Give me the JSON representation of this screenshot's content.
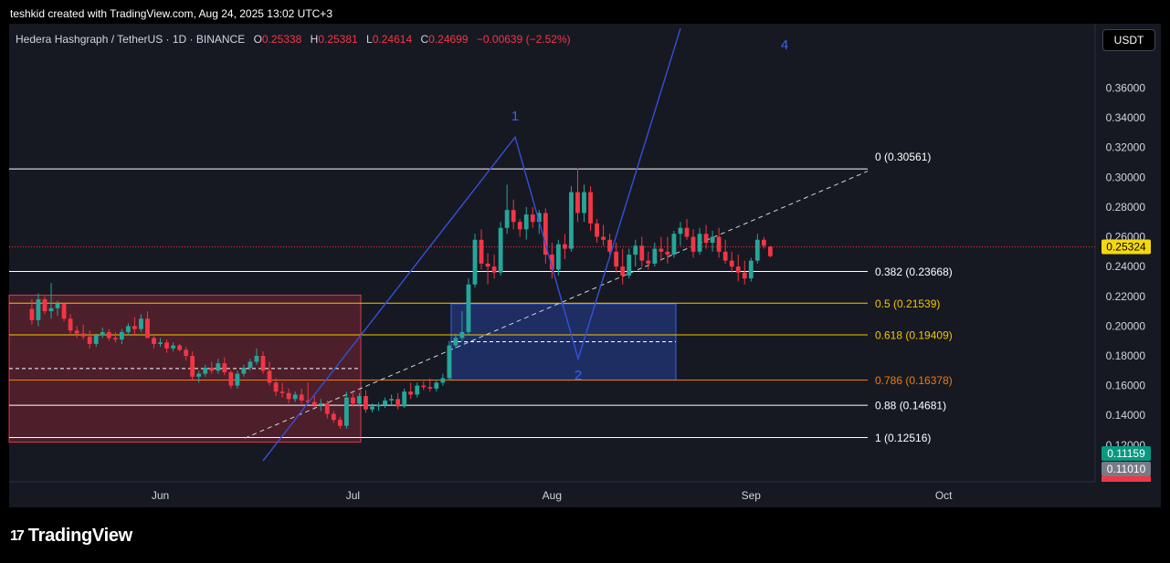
{
  "header": {
    "credit": "teshkid created with TradingView.com, Aug 24, 2025 13:02 UTC+3"
  },
  "legend": {
    "symbol": "Hedera Hashgraph / TetherUS · 1D · BINANCE",
    "o_label": "O",
    "o": "0.25338",
    "h_label": "H",
    "h": "0.25381",
    "l_label": "L",
    "l": "0.24614",
    "c_label": "C",
    "c": "0.24699",
    "change": "−0.00639 (−2.52%)"
  },
  "currency_button": "USDT",
  "brand": {
    "name": "TradingView",
    "mark": "17"
  },
  "colors": {
    "up": "#26a69a",
    "down": "#f23645",
    "background": "#161922",
    "wave_line": "#3550d9",
    "fib_gold": "#f5c400",
    "fib_orange": "#f57c00",
    "price_badge": "#f5d90a",
    "box_red": "#b22a3a",
    "box_blue": "#2a4ec4"
  },
  "chart_data": {
    "type": "candlestick",
    "x_axis": {
      "labels": [
        "Jun",
        "Jul",
        "Aug",
        "Sep",
        "Oct"
      ],
      "dates": [
        "2025-06-01",
        "2025-07-01",
        "2025-08-01",
        "2025-09-01",
        "2025-10-01"
      ]
    },
    "y_axis": {
      "range": [
        0.11,
        0.39
      ],
      "ticks": [
        "0.12000",
        "0.14000",
        "0.16000",
        "0.18000",
        "0.20000",
        "0.22000",
        "0.24000",
        "0.26000",
        "0.28000",
        "0.30000",
        "0.32000",
        "0.34000",
        "0.36000"
      ]
    },
    "current_price": "0.25324",
    "price_markers": [
      {
        "value": "0.11159",
        "color": "#089981"
      },
      {
        "value": "0.11010",
        "color": "#787b86"
      }
    ],
    "fibonacci": [
      {
        "label": "0 (0.30561)",
        "price": 0.30561,
        "color": "#ffffff"
      },
      {
        "label": "0.382 (0.23668)",
        "price": 0.23668,
        "color": "#ffffff"
      },
      {
        "label": "0.5 (0.21539)",
        "price": 0.21539,
        "color": "#f5c400"
      },
      {
        "label": "0.618 (0.19409)",
        "price": 0.19409,
        "color": "#f5c400"
      },
      {
        "label": "0.786 (0.16378)",
        "price": 0.16378,
        "color": "#f57c00"
      },
      {
        "label": "0.88 (0.14681)",
        "price": 0.14681,
        "color": "#ffffff"
      },
      {
        "label": "1 (0.12516)",
        "price": 0.12516,
        "color": "#ffffff"
      }
    ],
    "wave_labels": [
      "1",
      "2",
      "4"
    ],
    "candles": [
      [
        "2025-05-12",
        0.2115,
        0.218,
        0.201,
        0.204
      ],
      [
        "2025-05-13",
        0.204,
        0.222,
        0.2,
        0.218
      ],
      [
        "2025-05-14",
        0.218,
        0.22,
        0.208,
        0.21
      ],
      [
        "2025-05-15",
        0.21,
        0.229,
        0.205,
        0.212
      ],
      [
        "2025-05-16",
        0.212,
        0.217,
        0.207,
        0.215
      ],
      [
        "2025-05-17",
        0.215,
        0.216,
        0.203,
        0.205
      ],
      [
        "2025-05-18",
        0.205,
        0.208,
        0.195,
        0.197
      ],
      [
        "2025-05-19",
        0.197,
        0.2,
        0.192,
        0.195
      ],
      [
        "2025-05-20",
        0.195,
        0.201,
        0.191,
        0.193
      ],
      [
        "2025-05-21",
        0.193,
        0.197,
        0.185,
        0.188
      ],
      [
        "2025-05-22",
        0.188,
        0.195,
        0.186,
        0.194
      ],
      [
        "2025-05-23",
        0.194,
        0.199,
        0.192,
        0.196
      ],
      [
        "2025-05-24",
        0.196,
        0.198,
        0.19,
        0.192
      ],
      [
        "2025-05-25",
        0.192,
        0.196,
        0.189,
        0.191
      ],
      [
        "2025-05-26",
        0.191,
        0.198,
        0.188,
        0.196
      ],
      [
        "2025-05-27",
        0.196,
        0.202,
        0.194,
        0.2
      ],
      [
        "2025-05-28",
        0.2,
        0.206,
        0.194,
        0.198
      ],
      [
        "2025-05-29",
        0.198,
        0.208,
        0.196,
        0.205
      ],
      [
        "2025-05-30",
        0.205,
        0.21,
        0.193,
        0.192
      ],
      [
        "2025-05-31",
        0.192,
        0.194,
        0.185,
        0.188
      ],
      [
        "2025-06-01",
        0.188,
        0.192,
        0.186,
        0.189
      ],
      [
        "2025-06-02",
        0.189,
        0.191,
        0.182,
        0.185
      ],
      [
        "2025-06-03",
        0.185,
        0.189,
        0.183,
        0.187
      ],
      [
        "2025-06-04",
        0.187,
        0.188,
        0.183,
        0.184
      ],
      [
        "2025-06-05",
        0.184,
        0.186,
        0.177,
        0.18
      ],
      [
        "2025-06-06",
        0.18,
        0.183,
        0.164,
        0.166
      ],
      [
        "2025-06-07",
        0.166,
        0.17,
        0.162,
        0.168
      ],
      [
        "2025-06-08",
        0.168,
        0.174,
        0.166,
        0.172
      ],
      [
        "2025-06-09",
        0.172,
        0.176,
        0.168,
        0.17
      ],
      [
        "2025-06-10",
        0.17,
        0.178,
        0.168,
        0.175
      ],
      [
        "2025-06-11",
        0.175,
        0.179,
        0.167,
        0.169
      ],
      [
        "2025-06-12",
        0.169,
        0.17,
        0.158,
        0.16
      ],
      [
        "2025-06-13",
        0.16,
        0.17,
        0.158,
        0.168
      ],
      [
        "2025-06-14",
        0.168,
        0.174,
        0.166,
        0.172
      ],
      [
        "2025-06-15",
        0.172,
        0.178,
        0.17,
        0.176
      ],
      [
        "2025-06-16",
        0.176,
        0.185,
        0.174,
        0.18
      ],
      [
        "2025-06-17",
        0.18,
        0.183,
        0.168,
        0.17
      ],
      [
        "2025-06-18",
        0.17,
        0.176,
        0.16,
        0.162
      ],
      [
        "2025-06-19",
        0.162,
        0.165,
        0.153,
        0.156
      ],
      [
        "2025-06-20",
        0.156,
        0.162,
        0.152,
        0.155
      ],
      [
        "2025-06-21",
        0.155,
        0.158,
        0.148,
        0.151
      ],
      [
        "2025-06-22",
        0.151,
        0.156,
        0.149,
        0.154
      ],
      [
        "2025-06-23",
        0.154,
        0.158,
        0.148,
        0.15
      ],
      [
        "2025-06-24",
        0.15,
        0.162,
        0.148,
        0.149
      ],
      [
        "2025-06-25",
        0.149,
        0.153,
        0.145,
        0.147
      ],
      [
        "2025-06-26",
        0.147,
        0.151,
        0.143,
        0.148
      ],
      [
        "2025-06-27",
        0.148,
        0.15,
        0.138,
        0.141
      ],
      [
        "2025-06-28",
        0.141,
        0.143,
        0.135,
        0.137
      ],
      [
        "2025-06-29",
        0.137,
        0.139,
        0.131,
        0.133
      ],
      [
        "2025-06-30",
        0.133,
        0.156,
        0.131,
        0.152
      ],
      [
        "2025-07-01",
        0.152,
        0.155,
        0.146,
        0.148
      ],
      [
        "2025-07-02",
        0.148,
        0.155,
        0.146,
        0.153
      ],
      [
        "2025-07-03",
        0.153,
        0.157,
        0.142,
        0.144
      ],
      [
        "2025-07-04",
        0.144,
        0.148,
        0.142,
        0.146
      ],
      [
        "2025-07-05",
        0.146,
        0.149,
        0.143,
        0.147
      ],
      [
        "2025-07-06",
        0.147,
        0.152,
        0.145,
        0.15
      ],
      [
        "2025-07-07",
        0.15,
        0.154,
        0.147,
        0.151
      ],
      [
        "2025-07-08",
        0.151,
        0.155,
        0.144,
        0.146
      ],
      [
        "2025-07-09",
        0.146,
        0.158,
        0.145,
        0.156
      ],
      [
        "2025-07-10",
        0.156,
        0.162,
        0.151,
        0.154
      ],
      [
        "2025-07-11",
        0.154,
        0.162,
        0.152,
        0.16
      ],
      [
        "2025-07-12",
        0.16,
        0.163,
        0.157,
        0.159
      ],
      [
        "2025-07-13",
        0.159,
        0.165,
        0.156,
        0.158
      ],
      [
        "2025-07-14",
        0.158,
        0.164,
        0.156,
        0.162
      ],
      [
        "2025-07-15",
        0.162,
        0.168,
        0.16,
        0.165
      ],
      [
        "2025-07-16",
        0.165,
        0.19,
        0.164,
        0.187
      ],
      [
        "2025-07-17",
        0.187,
        0.195,
        0.185,
        0.192
      ],
      [
        "2025-07-18",
        0.192,
        0.21,
        0.19,
        0.196
      ],
      [
        "2025-07-19",
        0.196,
        0.232,
        0.194,
        0.228
      ],
      [
        "2025-07-20",
        0.228,
        0.262,
        0.226,
        0.258
      ],
      [
        "2025-07-21",
        0.258,
        0.265,
        0.238,
        0.242
      ],
      [
        "2025-07-22",
        0.242,
        0.249,
        0.228,
        0.24
      ],
      [
        "2025-07-23",
        0.24,
        0.248,
        0.232,
        0.236
      ],
      [
        "2025-07-24",
        0.236,
        0.27,
        0.234,
        0.266
      ],
      [
        "2025-07-25",
        0.266,
        0.295,
        0.262,
        0.278
      ],
      [
        "2025-07-26",
        0.278,
        0.285,
        0.265,
        0.27
      ],
      [
        "2025-07-27",
        0.27,
        0.272,
        0.26,
        0.265
      ],
      [
        "2025-07-28",
        0.265,
        0.28,
        0.258,
        0.275
      ],
      [
        "2025-07-29",
        0.275,
        0.28,
        0.266,
        0.27
      ],
      [
        "2025-07-30",
        0.27,
        0.278,
        0.262,
        0.276
      ],
      [
        "2025-07-31",
        0.276,
        0.279,
        0.242,
        0.248
      ],
      [
        "2025-08-01",
        0.248,
        0.256,
        0.232,
        0.238
      ],
      [
        "2025-08-02",
        0.238,
        0.258,
        0.234,
        0.255
      ],
      [
        "2025-08-03",
        0.255,
        0.262,
        0.245,
        0.252
      ],
      [
        "2025-08-04",
        0.252,
        0.294,
        0.25,
        0.29
      ],
      [
        "2025-08-05",
        0.29,
        0.306,
        0.27,
        0.276
      ],
      [
        "2025-08-06",
        0.276,
        0.295,
        0.27,
        0.29
      ],
      [
        "2025-08-07",
        0.29,
        0.294,
        0.264,
        0.269
      ],
      [
        "2025-08-08",
        0.269,
        0.272,
        0.256,
        0.26
      ],
      [
        "2025-08-09",
        0.26,
        0.268,
        0.254,
        0.258
      ],
      [
        "2025-08-10",
        0.258,
        0.262,
        0.248,
        0.25
      ],
      [
        "2025-08-11",
        0.25,
        0.256,
        0.236,
        0.24
      ],
      [
        "2025-08-12",
        0.24,
        0.252,
        0.228,
        0.234
      ],
      [
        "2025-08-13",
        0.234,
        0.252,
        0.232,
        0.248
      ],
      [
        "2025-08-14",
        0.248,
        0.258,
        0.24,
        0.254
      ],
      [
        "2025-08-15",
        0.254,
        0.26,
        0.24,
        0.244
      ],
      [
        "2025-08-16",
        0.244,
        0.25,
        0.238,
        0.242
      ],
      [
        "2025-08-17",
        0.242,
        0.256,
        0.24,
        0.252
      ],
      [
        "2025-08-18",
        0.252,
        0.26,
        0.244,
        0.25
      ],
      [
        "2025-08-19",
        0.25,
        0.26,
        0.242,
        0.248
      ],
      [
        "2025-08-20",
        0.248,
        0.264,
        0.246,
        0.262
      ],
      [
        "2025-08-21",
        0.262,
        0.27,
        0.254,
        0.266
      ],
      [
        "2025-08-22",
        0.266,
        0.272,
        0.258,
        0.26
      ],
      [
        "2025-08-23",
        0.26,
        0.265,
        0.246,
        0.25
      ],
      [
        "2025-08-24",
        0.25,
        0.266,
        0.248,
        0.262
      ],
      [
        "2025-08-25",
        0.262,
        0.268,
        0.252,
        0.256
      ],
      [
        "2025-08-26",
        0.256,
        0.264,
        0.25,
        0.26
      ],
      [
        "2025-08-27",
        0.26,
        0.266,
        0.246,
        0.25
      ],
      [
        "2025-08-28",
        0.25,
        0.258,
        0.242,
        0.244
      ],
      [
        "2025-08-29",
        0.244,
        0.25,
        0.236,
        0.24
      ],
      [
        "2025-08-30",
        0.24,
        0.248,
        0.23,
        0.236
      ],
      [
        "2025-08-31",
        0.236,
        0.244,
        0.228,
        0.232
      ],
      [
        "2025-09-01",
        0.232,
        0.246,
        0.23,
        0.244
      ],
      [
        "2025-09-02",
        0.244,
        0.262,
        0.242,
        0.258
      ],
      [
        "2025-09-03",
        0.258,
        0.26,
        0.252,
        0.254
      ],
      [
        "2025-09-04",
        0.2534,
        0.2538,
        0.2461,
        0.247
      ]
    ]
  }
}
